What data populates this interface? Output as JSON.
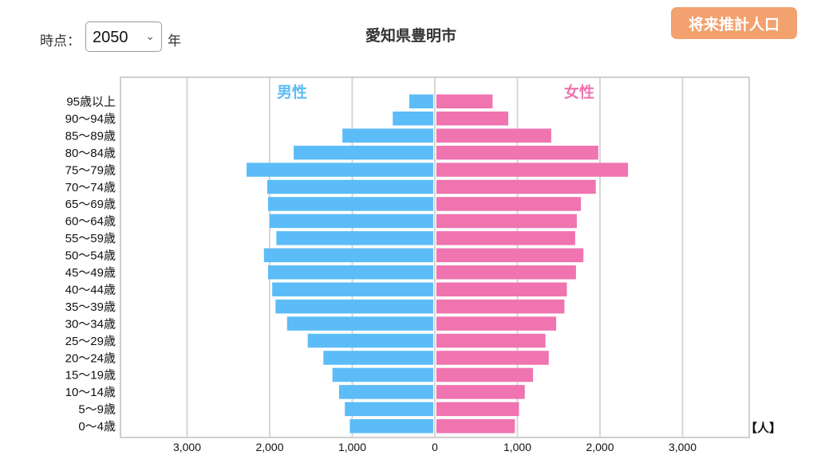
{
  "header": {
    "time_label": "時点：",
    "year_select_value": "2050",
    "year_suffix": "年",
    "title": "愛知県豊明市",
    "projection_button": "将来推計人口"
  },
  "colors": {
    "male": "#5bbcf7",
    "female": "#ef74b0",
    "button": "#f2a16f"
  },
  "chart_data": {
    "type": "bar",
    "orientation": "horizontal-pyramid",
    "title": "愛知県豊明市",
    "male_label": "男性",
    "female_label": "女性",
    "unit_label": "【人】",
    "x_ticks": [
      "3,000",
      "2,000",
      "1,000",
      "0",
      "1,000",
      "2,000",
      "3,000"
    ],
    "xlim": [
      -3800,
      3800
    ],
    "categories": [
      "95歳以上",
      "90〜94歳",
      "85〜89歳",
      "80〜84歳",
      "75〜79歳",
      "70〜74歳",
      "65〜69歳",
      "60〜64歳",
      "55〜59歳",
      "50〜54歳",
      "45〜49歳",
      "40〜44歳",
      "35〜39歳",
      "30〜34歳",
      "25〜29歳",
      "20〜24歳",
      "15〜19歳",
      "10〜14歳",
      "5〜9歳",
      "0〜4歳"
    ],
    "series": [
      {
        "name": "男性",
        "values": [
          290,
          490,
          1100,
          1690,
          2260,
          2010,
          2000,
          1980,
          1900,
          2050,
          2000,
          1950,
          1910,
          1770,
          1520,
          1330,
          1220,
          1140,
          1070,
          1010
        ]
      },
      {
        "name": "女性",
        "values": [
          680,
          870,
          1390,
          1960,
          2320,
          1930,
          1750,
          1700,
          1680,
          1780,
          1690,
          1580,
          1550,
          1450,
          1320,
          1360,
          1170,
          1070,
          1000,
          950
        ]
      }
    ],
    "grid": true
  }
}
